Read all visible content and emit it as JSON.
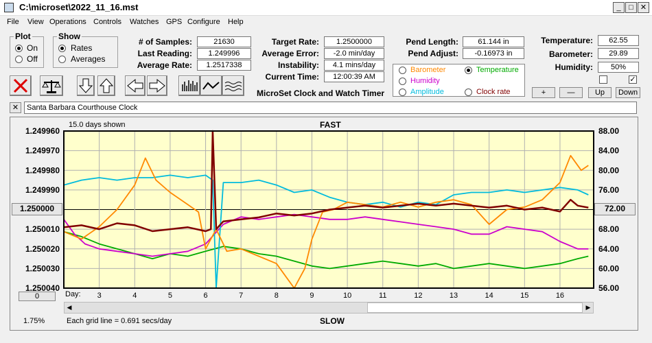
{
  "window": {
    "title": "C:\\microset\\2022_11_16.mst"
  },
  "menu": [
    "File",
    "View",
    "Operations",
    "Controls",
    "Watches",
    "GPS",
    "Configure",
    "Help"
  ],
  "plot_group": {
    "title": "Plot",
    "options": [
      "On",
      "Off"
    ],
    "selected": "On"
  },
  "show_group": {
    "title": "Show",
    "options": [
      "Rates",
      "Averages"
    ],
    "selected": "Rates"
  },
  "stats": {
    "samples_label": "# of Samples:",
    "samples": "21630",
    "last_label": "Last Reading:",
    "last": "1.249996",
    "avg_label": "Average Rate:",
    "avg": "1.2517338",
    "target_label": "Target Rate:",
    "target": "1.2500000",
    "avgerr_label": "Average Error:",
    "avgerr": "-2.0 min/day",
    "instab_label": "Instability:",
    "instab": "4.1 mins/day",
    "time_label": "Current Time:",
    "time": "12:00:39 AM",
    "pendlen_label": "Pend Length:",
    "pendlen": "61.144 in",
    "pendadj_label": "Pend Adjust:",
    "pendadj": "-0.16973 in",
    "temp_label": "Temperature:",
    "temp": "62.55",
    "baro_label": "Barometer:",
    "baro": "29.89",
    "hum_label": "Humidity:",
    "hum": "50%"
  },
  "app_caption": "MicroSet Clock and Watch Timer",
  "channels": {
    "barometer": "Barometer",
    "humidity": "Humidity",
    "amplitude": "Amplitude",
    "temperature": "Temperature",
    "clockrate": "Clock rate",
    "colors": {
      "barometer": "#ff8800",
      "humidity": "#cc00cc",
      "amplitude": "#00bbdd",
      "temperature": "#00aa00",
      "clockrate": "#800000"
    }
  },
  "adjust_buttons": {
    "plus": "+",
    "minus": "—",
    "up": "Up",
    "down": "Down"
  },
  "clock_name": "Santa Barbara Courthouse Clock",
  "close_x": "✕",
  "chart_data": {
    "type": "line",
    "title": "FAST",
    "bottom_label": "SLOW",
    "days_shown": "15.0 days shown",
    "grid_note": "Each grid line = 0.691 secs/day",
    "percent": "1.75%",
    "left_button": "1.250000",
    "left_bottom_button": "0",
    "right_button": "72.00",
    "xlabel": "Day:",
    "x_ticks": [
      "3",
      "4",
      "5",
      "6",
      "7",
      "8",
      "9",
      "10",
      "11",
      "12",
      "13",
      "14",
      "15",
      "16"
    ],
    "x_range": [
      2.0,
      16.95
    ],
    "y_left_ticks": [
      "1.249960",
      "1.249970",
      "1.249980",
      "1.249990",
      "1.250000",
      "1.250010",
      "1.250020",
      "1.250030",
      "1.250040"
    ],
    "y_left_range": [
      1.24996,
      1.25004
    ],
    "y_right_ticks": [
      "88.00",
      "84.00",
      "80.00",
      "76.00",
      "72.00",
      "68.00",
      "64.00",
      "60.00",
      "56.00"
    ],
    "y_right_range": [
      56,
      88
    ],
    "series": [
      {
        "name": "Clock rate",
        "key": "clockrate",
        "axis": "left",
        "x": [
          2.0,
          2.5,
          3.0,
          3.5,
          4.0,
          4.5,
          5.0,
          5.5,
          6.0,
          6.15,
          6.2,
          6.3,
          6.5,
          7.0,
          7.5,
          8.0,
          8.5,
          9.0,
          9.5,
          10.0,
          10.5,
          11.0,
          11.5,
          12.0,
          12.5,
          13.0,
          13.5,
          14.0,
          14.5,
          15.0,
          15.5,
          16.0,
          16.3,
          16.5,
          16.8
        ],
        "y": [
          1.250009,
          1.250008,
          1.25001,
          1.250007,
          1.250008,
          1.250011,
          1.25001,
          1.250009,
          1.250011,
          1.25001,
          1.249956,
          1.25001,
          1.250006,
          1.250005,
          1.250004,
          1.250002,
          1.250003,
          1.250002,
          1.25,
          1.249999,
          1.249998,
          1.249999,
          1.249998,
          1.249997,
          1.249998,
          1.249997,
          1.249998,
          1.249999,
          1.249998,
          1.25,
          1.249999,
          1.250001,
          1.249995,
          1.249998,
          1.249999
        ]
      },
      {
        "name": "Barometer",
        "key": "barometer",
        "axis": "right",
        "x": [
          2.0,
          2.5,
          3.0,
          3.5,
          4.0,
          4.3,
          4.6,
          5.0,
          5.5,
          5.8,
          6.0,
          6.3,
          6.6,
          7.0,
          7.5,
          8.0,
          8.3,
          8.5,
          8.8,
          9.0,
          9.3,
          9.6,
          10.0,
          10.5,
          11.0,
          11.5,
          12.0,
          12.5,
          13.0,
          13.5,
          14.0,
          14.5,
          15.0,
          15.5,
          16.0,
          16.3,
          16.6,
          16.8
        ],
        "y": [
          67.5,
          66.0,
          68.5,
          72.0,
          77.0,
          82.5,
          78.0,
          75.5,
          73.0,
          71.5,
          64.0,
          68.0,
          63.5,
          64.0,
          62.5,
          61.0,
          58.0,
          56.0,
          60.0,
          66.0,
          71.5,
          72.0,
          73.5,
          73.0,
          72.5,
          73.5,
          72.5,
          73.5,
          74.0,
          73.0,
          69.0,
          72.0,
          72.5,
          74.0,
          77.5,
          83.0,
          80.0,
          81.0
        ]
      },
      {
        "name": "Temperature",
        "key": "temperature",
        "axis": "right",
        "x": [
          2.0,
          2.5,
          3.0,
          3.5,
          4.0,
          4.5,
          5.0,
          5.5,
          6.0,
          6.5,
          7.0,
          7.5,
          8.0,
          8.5,
          9.0,
          9.5,
          10.0,
          10.5,
          11.0,
          11.5,
          12.0,
          12.5,
          13.0,
          13.5,
          14.0,
          14.5,
          15.0,
          15.5,
          16.0,
          16.5,
          16.8
        ],
        "y": [
          67.5,
          66.5,
          65.0,
          64.0,
          63.0,
          62.0,
          63.0,
          62.5,
          63.5,
          64.5,
          64.0,
          63.0,
          62.5,
          61.5,
          60.5,
          60.0,
          60.5,
          61.0,
          61.5,
          61.0,
          60.5,
          61.0,
          60.0,
          60.5,
          61.0,
          60.5,
          60.0,
          60.5,
          61.0,
          62.0,
          62.5
        ]
      },
      {
        "name": "Humidity",
        "key": "humidity",
        "axis": "right",
        "x": [
          2.0,
          2.3,
          2.6,
          3.0,
          3.5,
          4.0,
          4.5,
          5.0,
          5.5,
          6.0,
          6.5,
          7.0,
          7.5,
          8.0,
          8.5,
          9.0,
          9.5,
          10.0,
          10.5,
          11.0,
          11.5,
          12.0,
          12.5,
          13.0,
          13.5,
          14.0,
          14.5,
          15.0,
          15.5,
          16.0,
          16.5,
          16.8
        ],
        "y": [
          70.0,
          67.0,
          65.0,
          64.0,
          63.5,
          63.0,
          62.5,
          63.0,
          63.5,
          65.0,
          69.0,
          70.5,
          70.0,
          70.5,
          71.0,
          70.5,
          70.0,
          70.0,
          70.5,
          70.0,
          69.5,
          69.0,
          68.5,
          68.0,
          67.0,
          67.0,
          68.5,
          68.0,
          67.5,
          65.5,
          64.0,
          64.0
        ]
      },
      {
        "name": "Amplitude",
        "key": "amplitude",
        "axis": "right",
        "x": [
          2.0,
          2.5,
          3.0,
          3.5,
          4.0,
          4.5,
          5.0,
          5.5,
          6.0,
          6.2,
          6.3,
          6.5,
          7.0,
          7.5,
          8.0,
          8.5,
          9.0,
          9.5,
          10.0,
          10.5,
          11.0,
          11.5,
          12.0,
          12.5,
          13.0,
          13.5,
          14.0,
          14.5,
          15.0,
          15.5,
          16.0,
          16.5,
          16.8
        ],
        "y": [
          77.0,
          78.0,
          78.5,
          78.0,
          78.5,
          78.5,
          79.0,
          78.5,
          79.0,
          78.0,
          56.0,
          77.5,
          77.5,
          78.0,
          77.0,
          75.5,
          76.0,
          74.5,
          73.5,
          73.0,
          73.5,
          72.5,
          73.5,
          73.0,
          75.0,
          75.5,
          75.5,
          76.0,
          75.5,
          76.0,
          76.5,
          76.0,
          75.0
        ]
      }
    ]
  }
}
